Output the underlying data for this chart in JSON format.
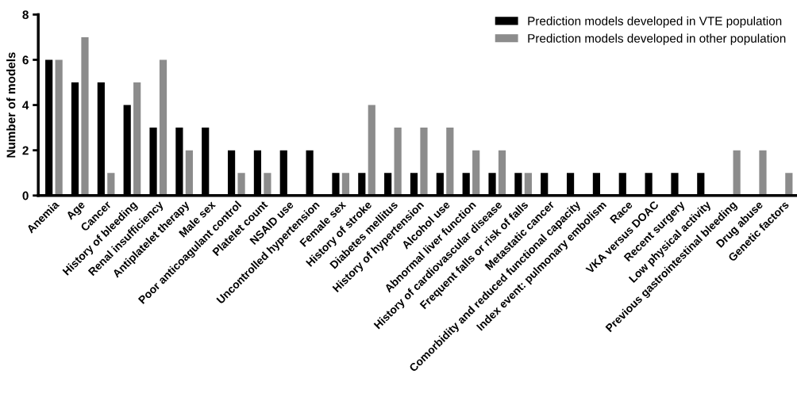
{
  "chart_data": {
    "type": "bar",
    "ylabel": "Number of models",
    "categories": [
      "Anemia",
      "Age",
      "Cancer",
      "History of bleeding",
      "Renal insufficiency",
      "Antiplatelet therapy",
      "Male sex",
      "Poor anticoagulant control",
      "Platelet count",
      "NSAID use",
      "Uncontrolled hypertension",
      "Female sex",
      "History of stroke",
      "Diabetes mellitus",
      "History of hypertension",
      "Alcohol use",
      "Abnormal liver function",
      "History of cardiovascular disease",
      "Frequent falls or risk of falls",
      "Metastatic cancer",
      "Comorbidity and reduced functional capacity",
      "Index event: pulmonary embolism",
      "Race",
      "VKA versus DOAC",
      "Recent surgery",
      "Low physical activity",
      "Previous gastrointestinal bleeding",
      "Drug abuse",
      "Genetic factors"
    ],
    "series": [
      {
        "name": "Prediction models developed in VTE population",
        "color": "#000000",
        "values": [
          6,
          5,
          5,
          4,
          3,
          3,
          3,
          2,
          2,
          2,
          2,
          1,
          1,
          1,
          1,
          1,
          1,
          1,
          1,
          1,
          1,
          1,
          1,
          1,
          1,
          1,
          0,
          0,
          0
        ]
      },
      {
        "name": "Prediction models developed in other population",
        "color": "#8c8c8c",
        "values": [
          6,
          7,
          1,
          5,
          6,
          2,
          0,
          1,
          1,
          0,
          0,
          1,
          4,
          3,
          3,
          3,
          2,
          2,
          1,
          0,
          0,
          0,
          0,
          0,
          0,
          0,
          2,
          2,
          1
        ]
      }
    ],
    "ylim": [
      0,
      8
    ],
    "yticks": [
      0,
      2,
      4,
      6,
      8
    ],
    "grid": false,
    "legend": "top right"
  }
}
